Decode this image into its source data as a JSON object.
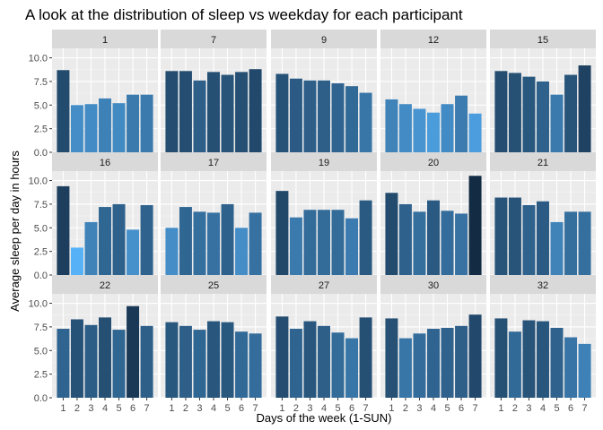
{
  "chart_data": {
    "type": "bar",
    "title": "A look at the distribution of sleep vs weekday for each participant",
    "xlabel": "Days of the week (1-SUN)",
    "ylabel": "Average sleep per day in hours",
    "categories": [
      "1",
      "2",
      "3",
      "4",
      "5",
      "6",
      "7"
    ],
    "y_ticks": [
      "0.0",
      "2.5",
      "5.0",
      "7.5",
      "10.0"
    ],
    "ylim": [
      0,
      11
    ],
    "facet_layout": "3 rows x 5 columns",
    "fill_scale": {
      "low": "#56b1f7",
      "high": "#132b43",
      "range": [
        3.0,
        10.5
      ]
    },
    "panel_background": "#ebebeb",
    "strip_background": "#d9d9d9",
    "gridlines": true,
    "legend": "none",
    "facets": [
      {
        "participant": "1",
        "values": [
          8.7,
          5.0,
          5.1,
          5.7,
          5.2,
          6.1,
          6.1
        ]
      },
      {
        "participant": "7",
        "values": [
          8.6,
          8.6,
          7.6,
          8.5,
          8.2,
          8.5,
          8.8
        ]
      },
      {
        "participant": "9",
        "values": [
          8.3,
          7.8,
          7.6,
          7.6,
          7.3,
          7.0,
          6.3
        ]
      },
      {
        "participant": "12",
        "values": [
          5.6,
          5.1,
          4.6,
          4.2,
          5.1,
          6.0,
          4.1
        ]
      },
      {
        "participant": "15",
        "values": [
          8.6,
          8.4,
          8.0,
          7.5,
          6.1,
          8.2,
          9.2
        ]
      },
      {
        "participant": "16",
        "values": [
          9.4,
          2.9,
          5.6,
          7.2,
          7.5,
          4.8,
          7.4
        ]
      },
      {
        "participant": "17",
        "values": [
          5.0,
          7.2,
          6.7,
          6.6,
          7.5,
          5.0,
          6.6
        ]
      },
      {
        "participant": "19",
        "values": [
          8.9,
          6.1,
          6.9,
          6.9,
          6.9,
          6.0,
          7.9
        ]
      },
      {
        "participant": "20",
        "values": [
          8.7,
          7.5,
          6.7,
          7.9,
          6.8,
          6.5,
          10.5
        ]
      },
      {
        "participant": "21",
        "values": [
          8.2,
          8.2,
          7.4,
          7.8,
          5.6,
          6.7,
          6.7
        ]
      },
      {
        "participant": "22",
        "values": [
          7.3,
          8.3,
          7.7,
          8.5,
          7.2,
          9.7,
          7.6
        ]
      },
      {
        "participant": "25",
        "values": [
          8.0,
          7.6,
          7.2,
          8.1,
          8.0,
          7.0,
          6.8
        ]
      },
      {
        "participant": "27",
        "values": [
          8.6,
          7.3,
          8.1,
          7.6,
          6.9,
          6.3,
          8.5
        ]
      },
      {
        "participant": "30",
        "values": [
          8.4,
          6.3,
          6.8,
          7.3,
          7.4,
          7.6,
          8.8
        ]
      },
      {
        "participant": "32",
        "values": [
          8.4,
          7.0,
          8.2,
          8.1,
          7.4,
          6.4,
          5.7
        ]
      }
    ]
  }
}
